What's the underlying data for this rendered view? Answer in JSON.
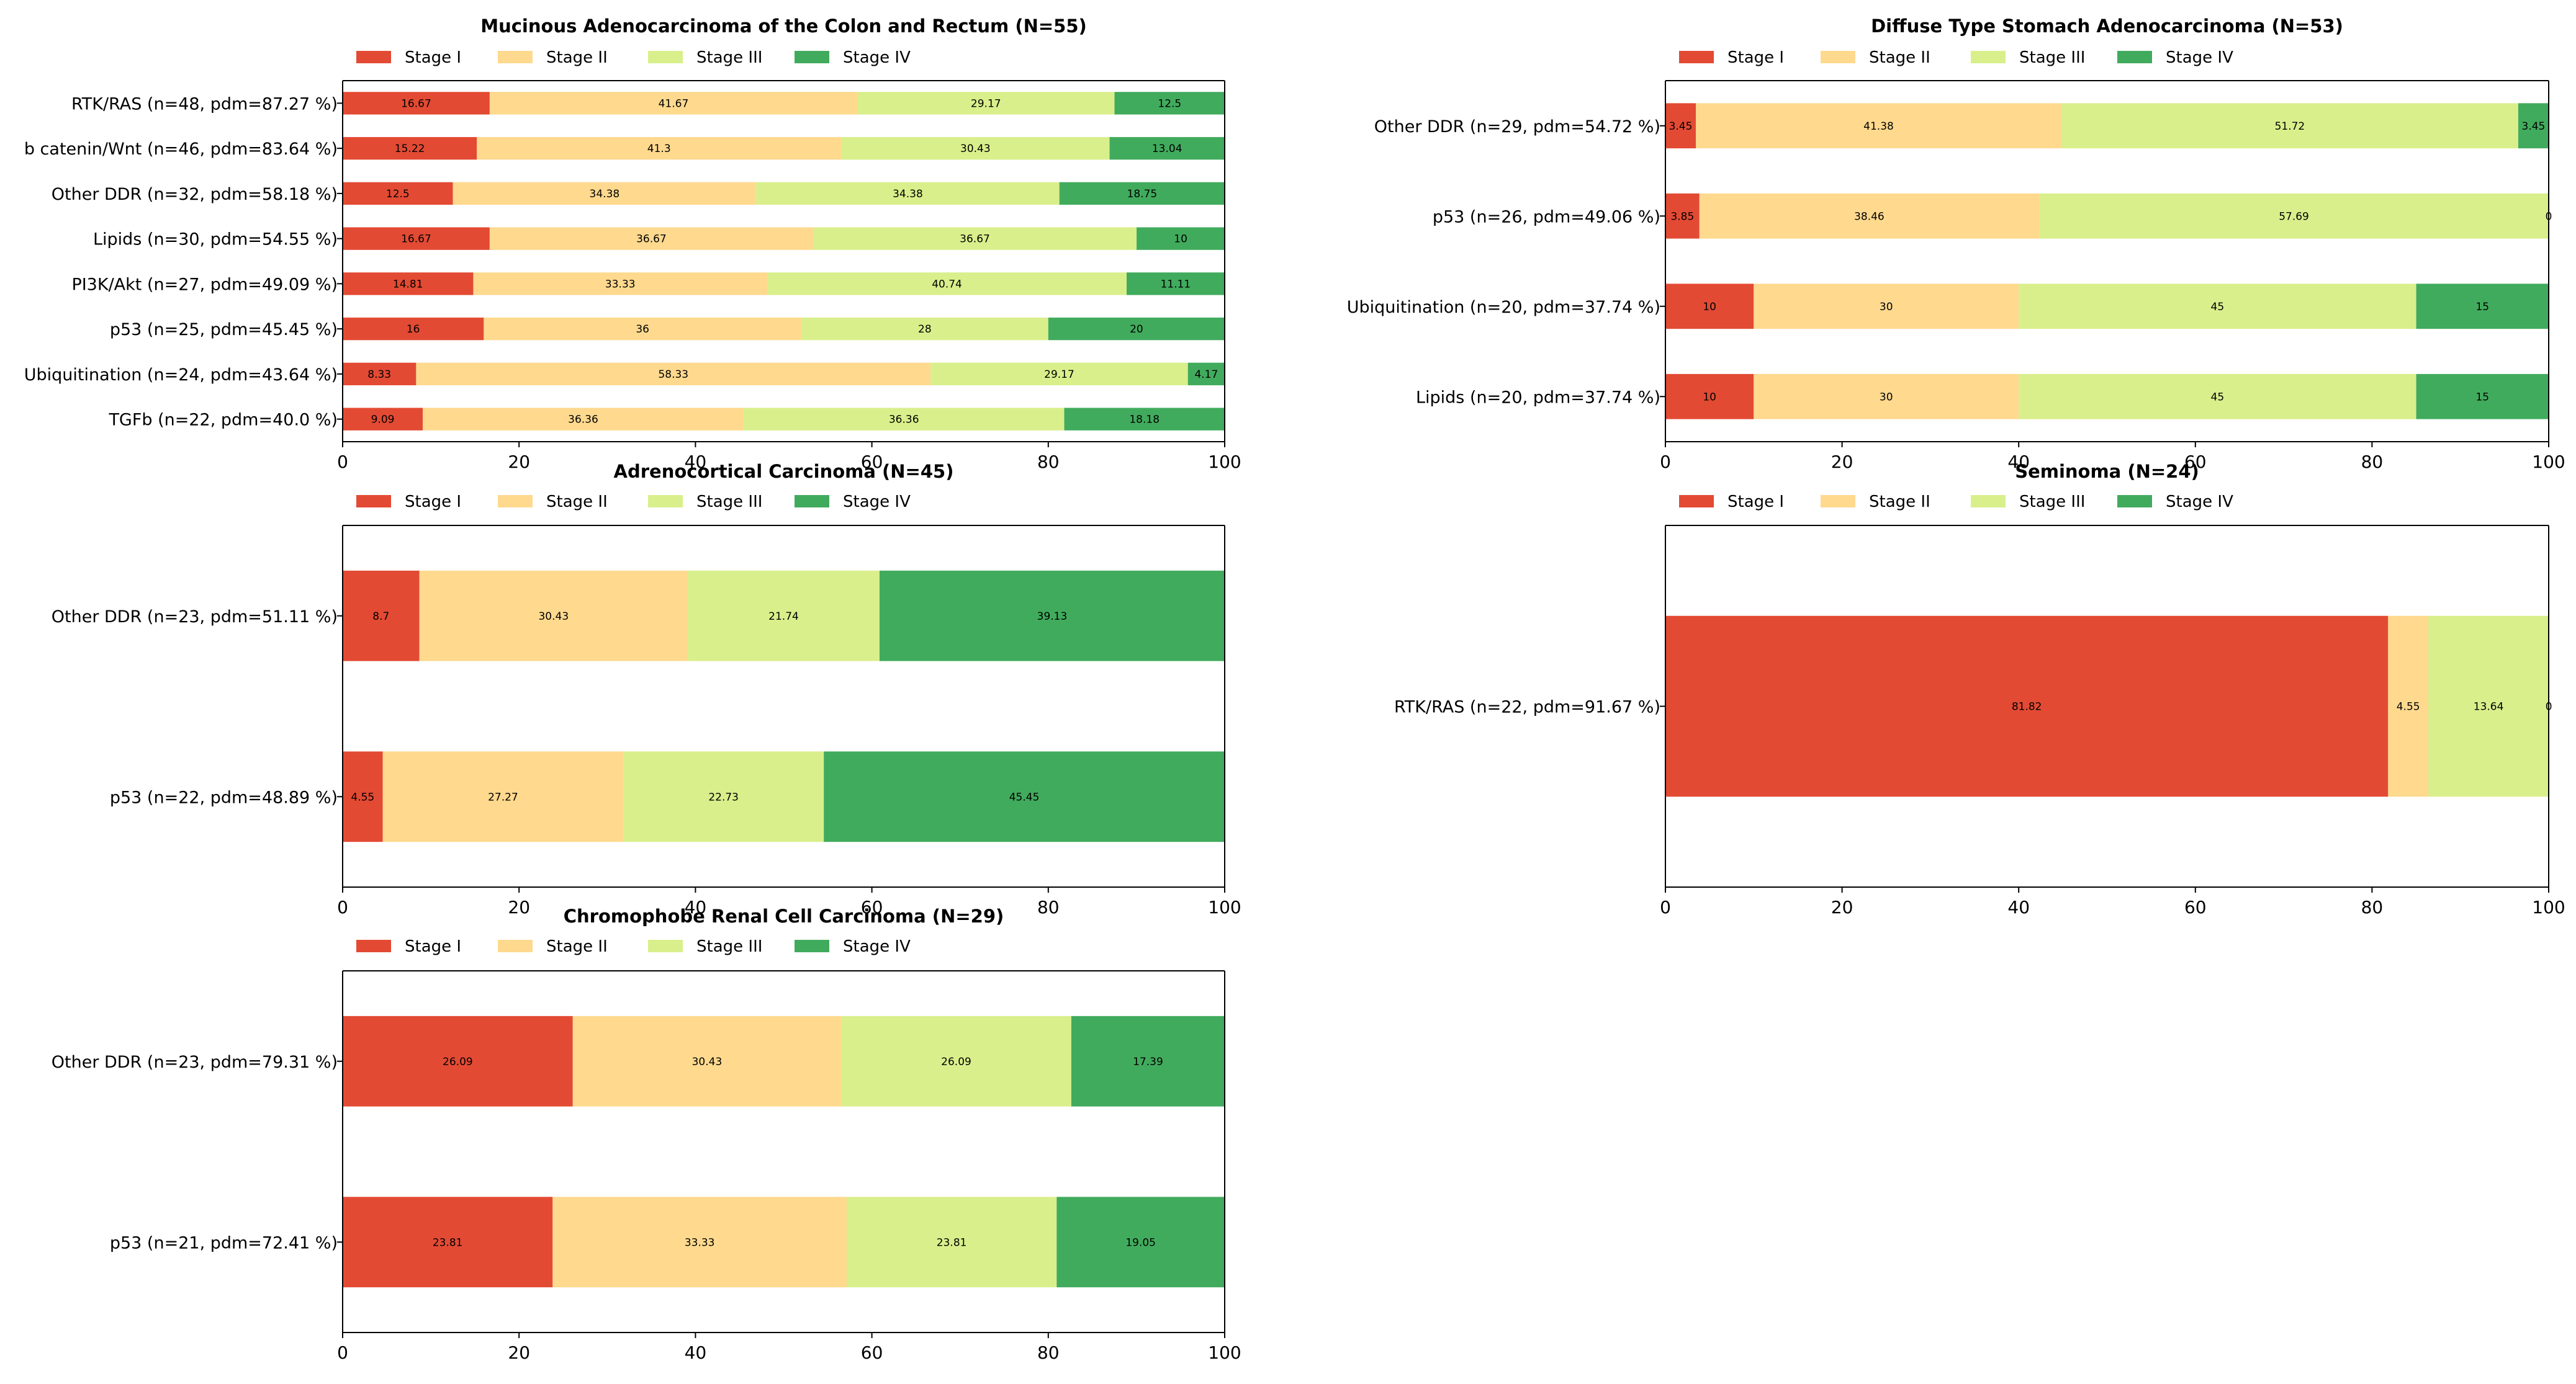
{
  "legend_labels": [
    "Stage I",
    "Stage II",
    "Stage III",
    "Stage IV"
  ],
  "colors": {
    "stage_1": "#e34a33",
    "stage_2": "#fed98e",
    "stage_3": "#d9ef8b",
    "stage_4": "#41ab5d",
    "axis": "#000000",
    "background": "#ffffff"
  },
  "chart_data": [
    {
      "type": "bar",
      "orientation": "horizontal",
      "stacked": true,
      "title": "Mucinous Adenocarcinoma of the Colon and Rectum (N=55)",
      "xlim": [
        0,
        100
      ],
      "xticks": [
        "0",
        "20",
        "40",
        "60",
        "80",
        "100"
      ],
      "legend": "top-left",
      "categories": [
        "RTK/RAS (n=48, pdm=87.27 %)",
        "b catenin/Wnt (n=46, pdm=83.64 %)",
        "Other DDR (n=32, pdm=58.18 %)",
        "Lipids (n=30, pdm=54.55 %)",
        "PI3K/Akt (n=27, pdm=49.09 %)",
        "p53 (n=25, pdm=45.45 %)",
        "Ubiquitination (n=24, pdm=43.64 %)",
        "TGFb (n=22, pdm=40.0 %)"
      ],
      "series": [
        {
          "name": "Stage I",
          "values": [
            16.67,
            15.22,
            12.5,
            16.67,
            14.81,
            16,
            8.33,
            9.09
          ]
        },
        {
          "name": "Stage II",
          "values": [
            41.67,
            41.3,
            34.38,
            36.67,
            33.33,
            36,
            58.33,
            36.36
          ]
        },
        {
          "name": "Stage III",
          "values": [
            29.17,
            30.43,
            34.38,
            36.67,
            40.74,
            28,
            29.17,
            36.36
          ]
        },
        {
          "name": "Stage IV",
          "values": [
            12.5,
            13.04,
            18.75,
            10,
            11.11,
            20,
            4.17,
            18.18
          ]
        }
      ],
      "labels": [
        [
          "16.67",
          "41.67",
          "29.17",
          "12.5"
        ],
        [
          "15.22",
          "41.3",
          "30.43",
          "13.04"
        ],
        [
          "12.5",
          "34.38",
          "34.38",
          "18.75"
        ],
        [
          "16.67",
          "36.67",
          "36.67",
          "10"
        ],
        [
          "14.81",
          "33.33",
          "40.74",
          "11.11"
        ],
        [
          "16",
          "36",
          "28",
          "20"
        ],
        [
          "8.33",
          "58.33",
          "29.17",
          "4.17"
        ],
        [
          "9.09",
          "36.36",
          "36.36",
          "18.18"
        ]
      ]
    },
    {
      "type": "bar",
      "orientation": "horizontal",
      "stacked": true,
      "title": "Diffuse Type Stomach Adenocarcinoma (N=53)",
      "xlim": [
        0,
        100
      ],
      "xticks": [
        "0",
        "20",
        "40",
        "60",
        "80",
        "100"
      ],
      "legend": "top-left",
      "categories": [
        "Other DDR (n=29, pdm=54.72 %)",
        "p53 (n=26, pdm=49.06 %)",
        "Ubiquitination (n=20, pdm=37.74 %)",
        "Lipids (n=20, pdm=37.74 %)"
      ],
      "series": [
        {
          "name": "Stage I",
          "values": [
            3.45,
            3.85,
            10,
            10
          ]
        },
        {
          "name": "Stage II",
          "values": [
            41.38,
            38.46,
            30,
            30
          ]
        },
        {
          "name": "Stage III",
          "values": [
            51.72,
            57.69,
            45,
            45
          ]
        },
        {
          "name": "Stage IV",
          "values": [
            3.45,
            0,
            15,
            15
          ]
        }
      ],
      "labels": [
        [
          "3.45",
          "41.38",
          "51.72",
          "3.45"
        ],
        [
          "3.85",
          "38.46",
          "57.69",
          "0"
        ],
        [
          "10",
          "30",
          "45",
          "15"
        ],
        [
          "10",
          "30",
          "45",
          "15"
        ]
      ]
    },
    {
      "type": "bar",
      "orientation": "horizontal",
      "stacked": true,
      "title": "Adrenocortical Carcinoma (N=45)",
      "xlim": [
        0,
        100
      ],
      "xticks": [
        "0",
        "20",
        "40",
        "60",
        "80",
        "100"
      ],
      "legend": "top-left",
      "categories": [
        "Other DDR (n=23, pdm=51.11 %)",
        "p53 (n=22, pdm=48.89 %)"
      ],
      "series": [
        {
          "name": "Stage I",
          "values": [
            8.7,
            4.55
          ]
        },
        {
          "name": "Stage II",
          "values": [
            30.43,
            27.27
          ]
        },
        {
          "name": "Stage III",
          "values": [
            21.74,
            22.73
          ]
        },
        {
          "name": "Stage IV",
          "values": [
            39.13,
            45.45
          ]
        }
      ],
      "labels": [
        [
          "8.7",
          "30.43",
          "21.74",
          "39.13"
        ],
        [
          "4.55",
          "27.27",
          "22.73",
          "45.45"
        ]
      ]
    },
    {
      "type": "bar",
      "orientation": "horizontal",
      "stacked": true,
      "title": "Seminoma (N=24)",
      "xlim": [
        0,
        100
      ],
      "xticks": [
        "0",
        "20",
        "40",
        "60",
        "80",
        "100"
      ],
      "legend": "top-left",
      "categories": [
        "RTK/RAS (n=22, pdm=91.67 %)"
      ],
      "series": [
        {
          "name": "Stage I",
          "values": [
            81.82
          ]
        },
        {
          "name": "Stage II",
          "values": [
            4.55
          ]
        },
        {
          "name": "Stage III",
          "values": [
            13.64
          ]
        },
        {
          "name": "Stage IV",
          "values": [
            0
          ]
        }
      ],
      "labels": [
        [
          "81.82",
          "4.55",
          "13.64",
          "0"
        ]
      ]
    },
    {
      "type": "bar",
      "orientation": "horizontal",
      "stacked": true,
      "title": "Chromophobe Renal Cell Carcinoma (N=29)",
      "xlim": [
        0,
        100
      ],
      "xticks": [
        "0",
        "20",
        "40",
        "60",
        "80",
        "100"
      ],
      "legend": "top-left",
      "categories": [
        "Other DDR (n=23, pdm=79.31 %)",
        "p53 (n=21, pdm=72.41 %)"
      ],
      "series": [
        {
          "name": "Stage I",
          "values": [
            26.09,
            23.81
          ]
        },
        {
          "name": "Stage II",
          "values": [
            30.43,
            33.33
          ]
        },
        {
          "name": "Stage III",
          "values": [
            26.09,
            23.81
          ]
        },
        {
          "name": "Stage IV",
          "values": [
            17.39,
            19.05
          ]
        }
      ],
      "labels": [
        [
          "26.09",
          "30.43",
          "26.09",
          "17.39"
        ],
        [
          "23.81",
          "33.33",
          "23.81",
          "19.05"
        ]
      ]
    }
  ]
}
